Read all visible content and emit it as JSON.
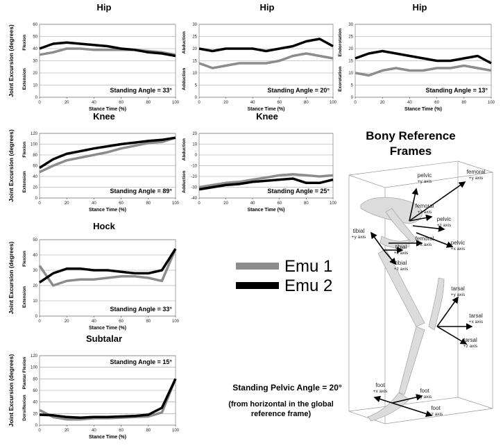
{
  "chart_data": [
    {
      "type": "line",
      "title": "Hip",
      "ylabel": "Joint Excursion (degrees)",
      "side_labels": [
        "Flexion",
        "Extension"
      ],
      "xlabel": "Stance Time (%)",
      "annotation": "Standing Angle = 33°",
      "annotation_position": "lower right",
      "x": [
        0,
        10,
        20,
        30,
        40,
        50,
        60,
        70,
        80,
        90,
        100
      ],
      "xlim": [
        0,
        100
      ],
      "xticks": [
        0,
        20,
        40,
        60,
        80,
        100
      ],
      "ylim": [
        0,
        60
      ],
      "yticks": [
        0,
        10,
        20,
        30,
        40,
        50,
        60
      ],
      "grid": true,
      "series": [
        {
          "name": "Emu 1",
          "color": "#8c8c8c",
          "values": [
            35,
            37,
            40,
            40,
            39,
            39,
            39,
            39,
            38,
            37,
            35
          ]
        },
        {
          "name": "Emu 2",
          "color": "#000000",
          "values": [
            40,
            44,
            45,
            44,
            43,
            42,
            40,
            39,
            37,
            36,
            34
          ]
        }
      ]
    },
    {
      "type": "line",
      "title": "Hip",
      "side_labels": [
        "Abduction",
        "Adduction"
      ],
      "xlabel": "Stance Time (%)",
      "annotation": "Standing Angle = 20°",
      "annotation_position": "lower right",
      "x": [
        0,
        10,
        20,
        30,
        40,
        50,
        60,
        70,
        80,
        90,
        100
      ],
      "xlim": [
        0,
        100
      ],
      "xticks": [
        0,
        20,
        40,
        60,
        80,
        100
      ],
      "ylim": [
        0,
        30
      ],
      "yticks": [
        0,
        5,
        10,
        15,
        20,
        25,
        30
      ],
      "grid": true,
      "series": [
        {
          "name": "Emu 1",
          "color": "#8c8c8c",
          "values": [
            14,
            12,
            13,
            14,
            14,
            14,
            15,
            17,
            18,
            17,
            16
          ]
        },
        {
          "name": "Emu 2",
          "color": "#000000",
          "values": [
            20,
            19,
            20,
            20,
            20,
            19,
            20,
            21,
            23,
            24,
            21
          ]
        }
      ]
    },
    {
      "type": "line",
      "title": "Hip",
      "side_labels": [
        "Endorotation",
        "Exorotation"
      ],
      "xlabel": "Stance Time (%)",
      "annotation": "Standing Angle = 13°",
      "annotation_position": "lower right",
      "x": [
        0,
        10,
        20,
        30,
        40,
        50,
        60,
        70,
        80,
        90,
        100
      ],
      "xlim": [
        0,
        100
      ],
      "xticks": [
        0,
        20,
        40,
        60,
        80,
        100
      ],
      "ylim": [
        0,
        30
      ],
      "yticks": [
        0,
        5,
        10,
        15,
        20,
        25,
        30
      ],
      "grid": true,
      "series": [
        {
          "name": "Emu 1",
          "color": "#8c8c8c",
          "values": [
            10,
            9,
            11,
            12,
            11,
            11,
            12,
            12,
            13,
            12,
            11
          ]
        },
        {
          "name": "Emu 2",
          "color": "#000000",
          "values": [
            16,
            18,
            19,
            18,
            17,
            16,
            15,
            15,
            16,
            17,
            14
          ]
        }
      ]
    },
    {
      "type": "line",
      "title": "Knee",
      "ylabel": "Joint Excursion (degrees)",
      "side_labels": [
        "Flexion",
        "Extension"
      ],
      "xlabel": "Stance Time (%)",
      "annotation": "Standing Angle = 89°",
      "annotation_position": "lower right",
      "x": [
        0,
        10,
        20,
        30,
        40,
        50,
        60,
        70,
        80,
        90,
        100
      ],
      "xlim": [
        0,
        100
      ],
      "xticks": [
        0,
        20,
        40,
        60,
        80,
        100
      ],
      "ylim": [
        0,
        120
      ],
      "yticks": [
        0,
        20,
        40,
        60,
        80,
        100,
        120
      ],
      "grid": true,
      "series": [
        {
          "name": "Emu 1",
          "color": "#8c8c8c",
          "values": [
            48,
            60,
            70,
            75,
            80,
            85,
            92,
            97,
            102,
            104,
            112
          ]
        },
        {
          "name": "Emu 2",
          "color": "#000000",
          "values": [
            56,
            72,
            82,
            87,
            92,
            96,
            100,
            103,
            106,
            108,
            112
          ]
        }
      ]
    },
    {
      "type": "line",
      "title": "Knee",
      "side_labels": [
        "Abduction",
        "Adduction"
      ],
      "xlabel": "Stance Time (%)",
      "annotation": "Standing Angle = 25°",
      "annotation_position": "lower right",
      "x": [
        0,
        10,
        20,
        30,
        40,
        50,
        60,
        70,
        80,
        90,
        100
      ],
      "xlim": [
        0,
        100
      ],
      "xticks": [
        0,
        20,
        40,
        60,
        80,
        100
      ],
      "ylim": [
        -40,
        20
      ],
      "yticks": [
        -40,
        -30,
        -20,
        -10,
        0,
        10,
        20
      ],
      "grid": true,
      "series": [
        {
          "name": "Emu 1",
          "color": "#8c8c8c",
          "values": [
            -30,
            -28,
            -26,
            -25,
            -23,
            -21,
            -19,
            -18,
            -19,
            -20,
            -19
          ]
        },
        {
          "name": "Emu 2",
          "color": "#000000",
          "values": [
            -32,
            -30,
            -28,
            -27,
            -25,
            -24,
            -23,
            -22,
            -26,
            -26,
            -23
          ]
        }
      ]
    },
    {
      "type": "line",
      "title": "Hock",
      "ylabel": "Joint Excursion (degrees)",
      "side_labels": [
        "Flexion",
        "Extension"
      ],
      "xlabel": "Stance Time (%)",
      "annotation": "Standing Angle = 33°",
      "annotation_position": "lower right",
      "x": [
        0,
        10,
        20,
        30,
        40,
        50,
        60,
        70,
        80,
        90,
        100
      ],
      "xlim": [
        0,
        100
      ],
      "xticks": [
        0,
        20,
        40,
        60,
        80,
        100
      ],
      "ylim": [
        0,
        50
      ],
      "yticks": [
        0,
        10,
        20,
        30,
        40,
        50
      ],
      "grid": true,
      "series": [
        {
          "name": "Emu 1",
          "color": "#8c8c8c",
          "values": [
            33,
            20,
            23,
            24,
            24,
            25,
            26,
            26,
            25,
            23,
            44
          ]
        },
        {
          "name": "Emu 2",
          "color": "#000000",
          "values": [
            22,
            28,
            31,
            31,
            30,
            30,
            29,
            28,
            28,
            30,
            44
          ]
        }
      ]
    },
    {
      "type": "line",
      "title": "Subtalar",
      "ylabel": "Joint Excursion (degrees)",
      "side_labels": [
        "Plantar Flexion",
        "Dorsiflexion"
      ],
      "xlabel": "Stance Time (%)",
      "annotation": "Standing Angle = 15°",
      "annotation_position": "upper right",
      "x": [
        0,
        10,
        20,
        30,
        40,
        50,
        60,
        70,
        80,
        90,
        100
      ],
      "xlim": [
        0,
        100
      ],
      "xticks": [
        0,
        20,
        40,
        60,
        80,
        100
      ],
      "ylim": [
        0,
        120
      ],
      "yticks": [
        0,
        20,
        40,
        60,
        80,
        100,
        120
      ],
      "grid": true,
      "series": [
        {
          "name": "Emu 1",
          "color": "#8c8c8c",
          "values": [
            26,
            14,
            10,
            10,
            12,
            12,
            13,
            14,
            15,
            22,
            80
          ]
        },
        {
          "name": "Emu 2",
          "color": "#000000",
          "values": [
            18,
            17,
            14,
            13,
            14,
            14,
            15,
            16,
            18,
            30,
            80
          ]
        }
      ]
    }
  ],
  "pelvic_angle": {
    "line1": "Standing Pelvic Angle = 20°",
    "line2": "(from horizontal in the global",
    "line3": "reference frame)"
  },
  "diagram": {
    "title_lines": [
      "Bony Reference",
      "Frames"
    ],
    "labels": [
      {
        "name": "pelvic",
        "axis": "+y axis"
      },
      {
        "name": "femoral",
        "axis": "+y axis"
      },
      {
        "name": "femoral",
        "axis": "+z axis"
      },
      {
        "name": "pelvic",
        "axis": "+z axis"
      },
      {
        "name": "pelvic",
        "axis": "+x axis"
      },
      {
        "name": "tibial",
        "axis": "+y axis"
      },
      {
        "name": "tibial",
        "axis": "+x axis"
      },
      {
        "name": "femoral",
        "axis": "+x axis"
      },
      {
        "name": "tibial",
        "axis": "+z axis"
      },
      {
        "name": "tarsal",
        "axis": "+y axis"
      },
      {
        "name": "tarsal",
        "axis": "+x axis"
      },
      {
        "name": "tarsal",
        "axis": "+z axis"
      },
      {
        "name": "foot",
        "axis": "+x axis"
      },
      {
        "name": "foot",
        "axis": "+y axis"
      },
      {
        "name": "foot",
        "axis": "+z axis"
      }
    ]
  }
}
